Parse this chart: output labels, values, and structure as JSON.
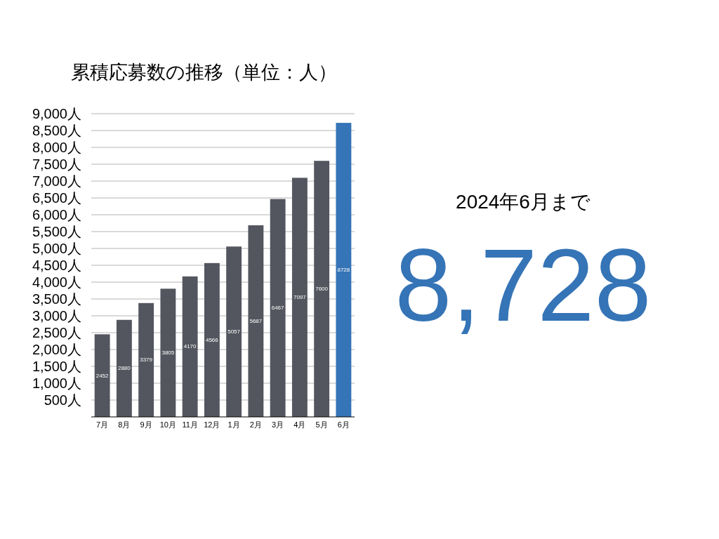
{
  "chart_data": [
    {
      "type": "bar",
      "title": "累積応募数の推移（単位：人）",
      "categories": [
        "7月",
        "8月",
        "9月",
        "10月",
        "11月",
        "12月",
        "1月",
        "2月",
        "3月",
        "4月",
        "5月",
        "6月"
      ],
      "values": [
        2452,
        2880,
        3379,
        3805,
        4170,
        4566,
        5057,
        5687,
        6467,
        7097,
        7600,
        8728
      ],
      "colors": [
        "#53565e",
        "#53565e",
        "#53565e",
        "#53565e",
        "#53565e",
        "#53565e",
        "#53565e",
        "#53565e",
        "#53565e",
        "#53565e",
        "#53565e",
        "#3574b6"
      ],
      "ylim": [
        0,
        9000
      ],
      "yticks": [
        {
          "value": 500,
          "label": "500人"
        },
        {
          "value": 1000,
          "label": "1,000人"
        },
        {
          "value": 1500,
          "label": "1,500人"
        },
        {
          "value": 2000,
          "label": "2,000人"
        },
        {
          "value": 2500,
          "label": "2,500人"
        },
        {
          "value": 3000,
          "label": "3,000人"
        },
        {
          "value": 3500,
          "label": "3,500人"
        },
        {
          "value": 4000,
          "label": "4,000人"
        },
        {
          "value": 4500,
          "label": "4,500人"
        },
        {
          "value": 5000,
          "label": "5,000人"
        },
        {
          "value": 5500,
          "label": "5,500人"
        },
        {
          "value": 6000,
          "label": "6,000人"
        },
        {
          "value": 6500,
          "label": "6,500人"
        },
        {
          "value": 7000,
          "label": "7,000人"
        },
        {
          "value": 7500,
          "label": "7,500人"
        },
        {
          "value": 8000,
          "label": "8,000人"
        },
        {
          "value": 8500,
          "label": "8,500人"
        },
        {
          "value": 9000,
          "label": "9,000人"
        }
      ],
      "grid": "y",
      "data_labels": true
    },
    {
      "type": "other",
      "annotations": [
        "2024年6月まで",
        "8,728"
      ]
    }
  ]
}
